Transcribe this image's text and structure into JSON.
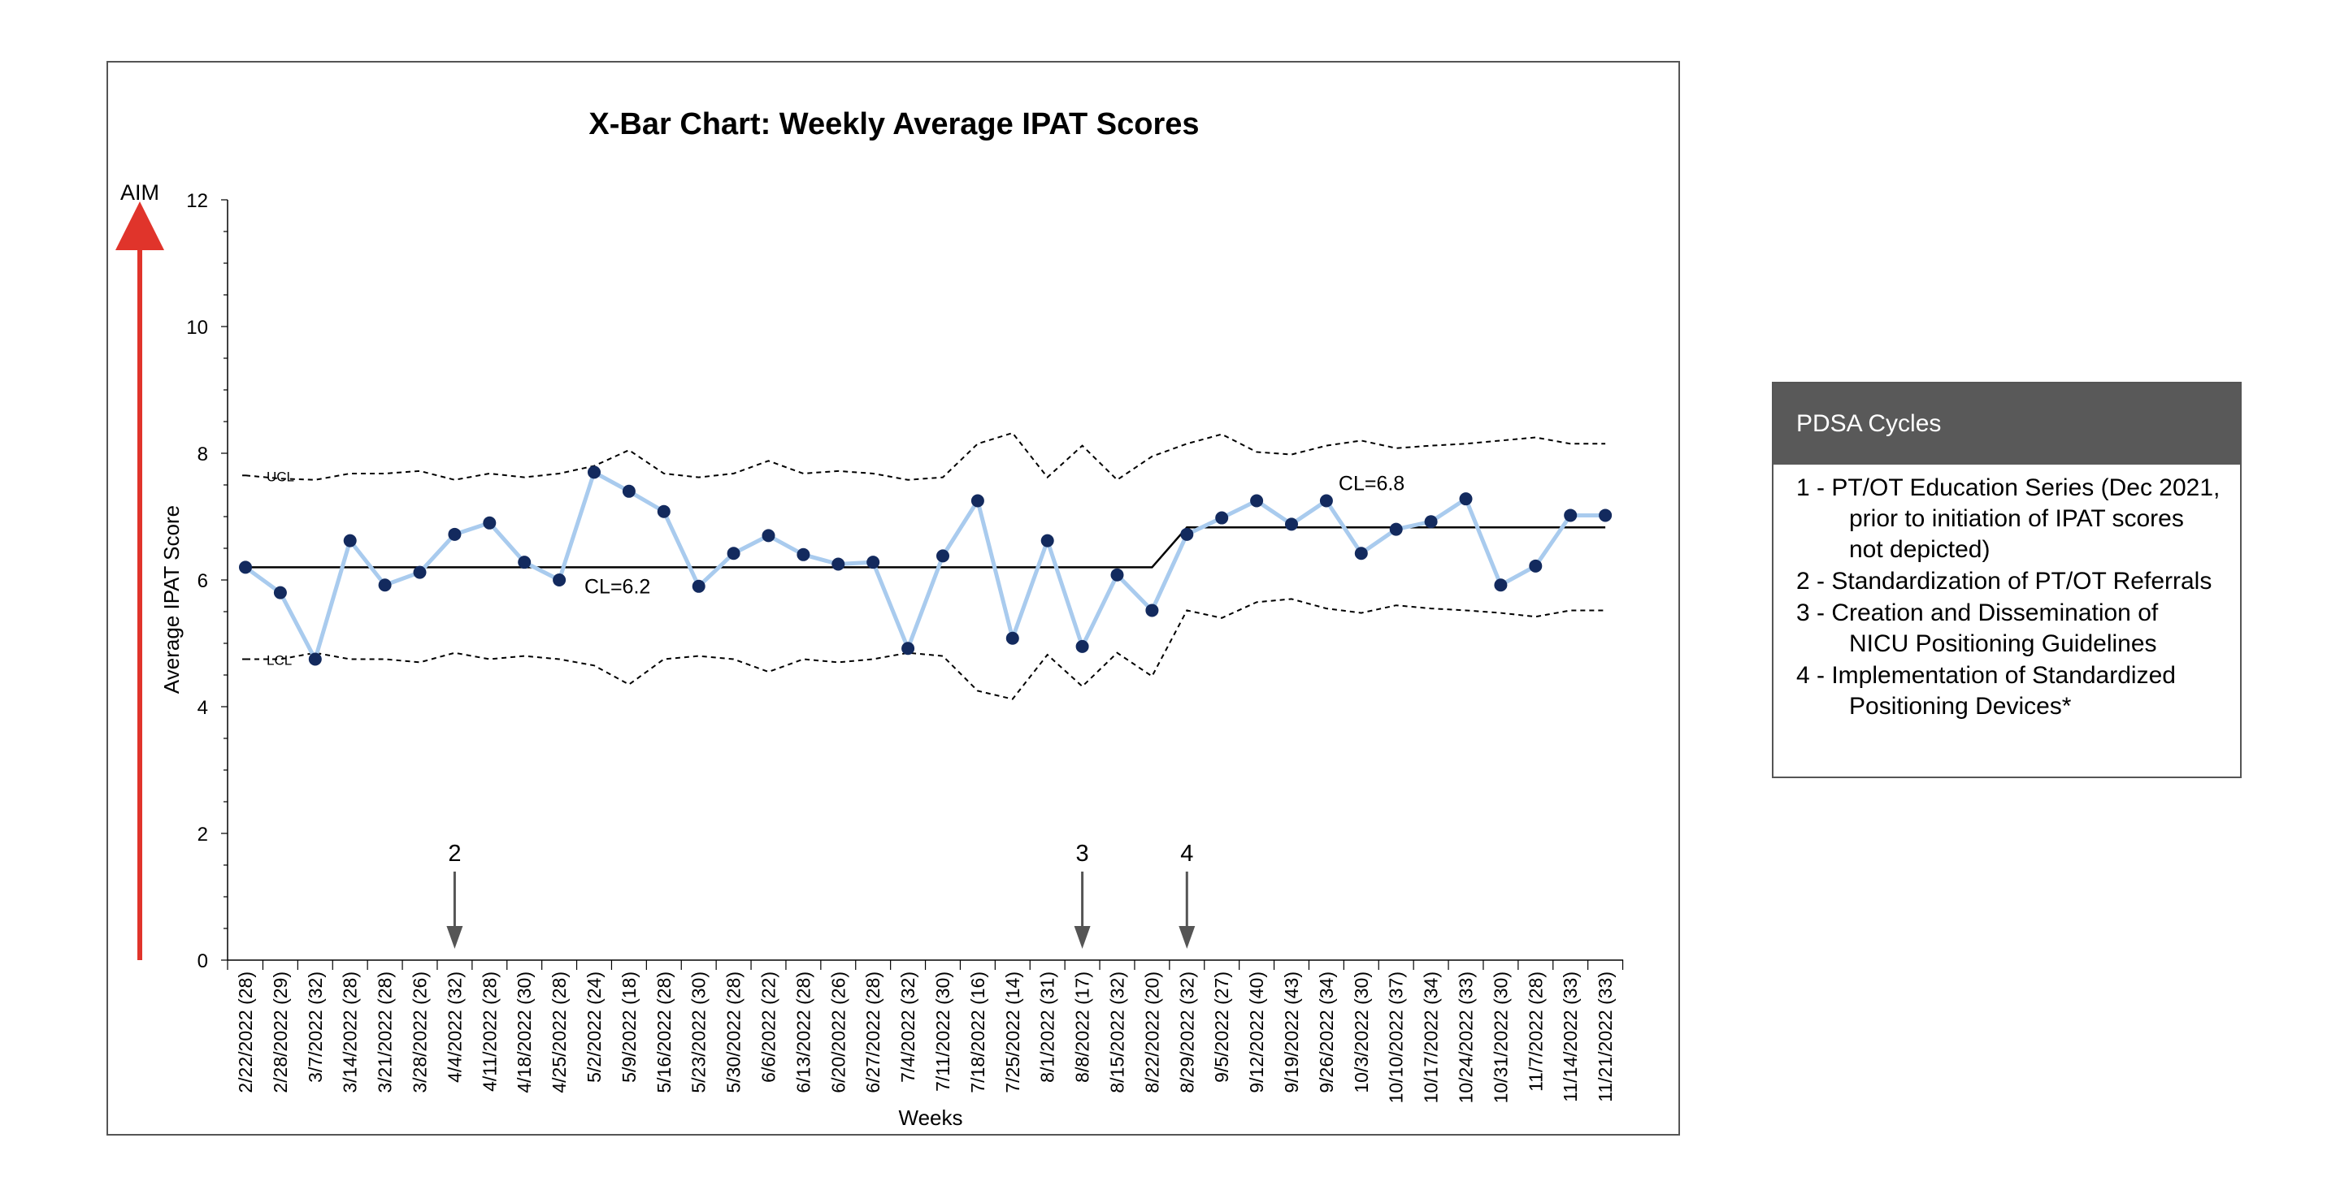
{
  "chart_data": {
    "type": "line",
    "title": "X-Bar Chart: Weekly Average IPAT Scores",
    "xlabel": "Weeks",
    "ylabel": "Average IPAT Score",
    "ylim": [
      0,
      12
    ],
    "yticks": [
      0,
      2,
      4,
      6,
      8,
      10,
      12
    ],
    "aim_label": "AIM",
    "categories": [
      "2/22/2022 (28)",
      "2/28/2022 (29)",
      "3/7/2022 (32)",
      "3/14/2022 (28)",
      "3/21/2022 (28)",
      "3/28/2022 (26)",
      "4/4/2022 (32)",
      "4/11/2022 (28)",
      "4/18/2022 (30)",
      "4/25/2022 (28)",
      "5/2/2022 (24)",
      "5/9/2022 (18)",
      "5/16/2022 (28)",
      "5/23/2022 (30)",
      "5/30/2022 (28)",
      "6/6/2022 (22)",
      "6/13/2022 (28)",
      "6/20/2022 (26)",
      "6/27/2022 (28)",
      "7/4/2022 (32)",
      "7/11/2022 (30)",
      "7/18/2022 (16)",
      "7/25/2022 (14)",
      "8/1/2022 (31)",
      "8/8/2022 (17)",
      "8/15/2022 (32)",
      "8/22/2022 (20)",
      "8/29/2022 (32)",
      "9/5/2022 (27)",
      "9/12/2022 (40)",
      "9/19/2022 (43)",
      "9/26/2022 (34)",
      "10/3/2022 (30)",
      "10/10/2022 (37)",
      "10/17/2022 (34)",
      "10/24/2022 (33)",
      "10/31/2022 (30)",
      "11/7/2022 (28)",
      "11/14/2022 (33)",
      "11/21/2022 (33)"
    ],
    "series": [
      {
        "values": [
          6.2,
          5.8,
          4.75,
          6.62,
          5.92,
          6.12,
          6.72,
          6.9,
          6.28,
          6.0,
          7.7,
          7.4,
          7.08,
          5.9,
          6.42,
          6.7,
          6.4,
          6.25,
          6.28,
          4.92,
          6.38,
          7.25,
          5.08,
          6.62,
          4.95,
          6.08,
          5.52,
          6.72,
          6.98,
          7.25,
          6.88,
          7.25,
          6.42,
          6.8,
          6.92,
          7.28,
          5.92,
          6.22,
          7.02,
          7.02
        ],
        "color": "#a9cbee",
        "marker_color": "#132a5e"
      },
      {
        "name": "UCL",
        "values": [
          7.65,
          7.6,
          7.58,
          7.68,
          7.68,
          7.72,
          7.58,
          7.68,
          7.62,
          7.68,
          7.8,
          8.05,
          7.68,
          7.62,
          7.68,
          7.88,
          7.68,
          7.72,
          7.68,
          7.58,
          7.62,
          8.15,
          8.32,
          7.62,
          8.12,
          7.58,
          7.95,
          8.15,
          8.3,
          8.02,
          7.98,
          8.12,
          8.2,
          8.08,
          8.12,
          8.15,
          8.2,
          8.25,
          8.15,
          8.15
        ],
        "style": "dashed"
      },
      {
        "name": "LCL",
        "values": [
          4.75,
          4.75,
          4.85,
          4.75,
          4.75,
          4.7,
          4.85,
          4.75,
          4.8,
          4.75,
          4.65,
          4.35,
          4.75,
          4.8,
          4.75,
          4.55,
          4.75,
          4.7,
          4.75,
          4.85,
          4.8,
          4.25,
          4.12,
          4.82,
          4.32,
          4.85,
          4.48,
          5.52,
          5.4,
          5.65,
          5.7,
          5.55,
          5.48,
          5.6,
          5.55,
          5.52,
          5.48,
          5.42,
          5.52,
          5.52
        ],
        "style": "dashed"
      }
    ],
    "center_line": {
      "segments": [
        {
          "label": "CL=6.2",
          "value": 6.2,
          "from": "2/22/2022 (28)",
          "to": "8/22/2022 (20)"
        },
        {
          "label": "CL=6.8",
          "value": 6.83,
          "from": "8/29/2022 (32)",
          "to": "11/21/2022 (33)"
        }
      ]
    },
    "annotations": [
      {
        "text": "2",
        "at": "4/4/2022 (32)"
      },
      {
        "text": "3",
        "at": "8/8/2022 (17)"
      },
      {
        "text": "4",
        "at": "8/29/2022 (32)"
      }
    ],
    "grid": false
  },
  "legend": {
    "title": "PDSA Cycles",
    "items": [
      "1 - PT/OT Education Series (Dec 2021, prior to initiation of IPAT scores not depicted)",
      "2 - Standardization of PT/OT Referrals",
      "3 - Creation and Dissemination of NICU Positioning Guidelines",
      "4 - Implementation of Standardized Positioning Devices*"
    ]
  }
}
